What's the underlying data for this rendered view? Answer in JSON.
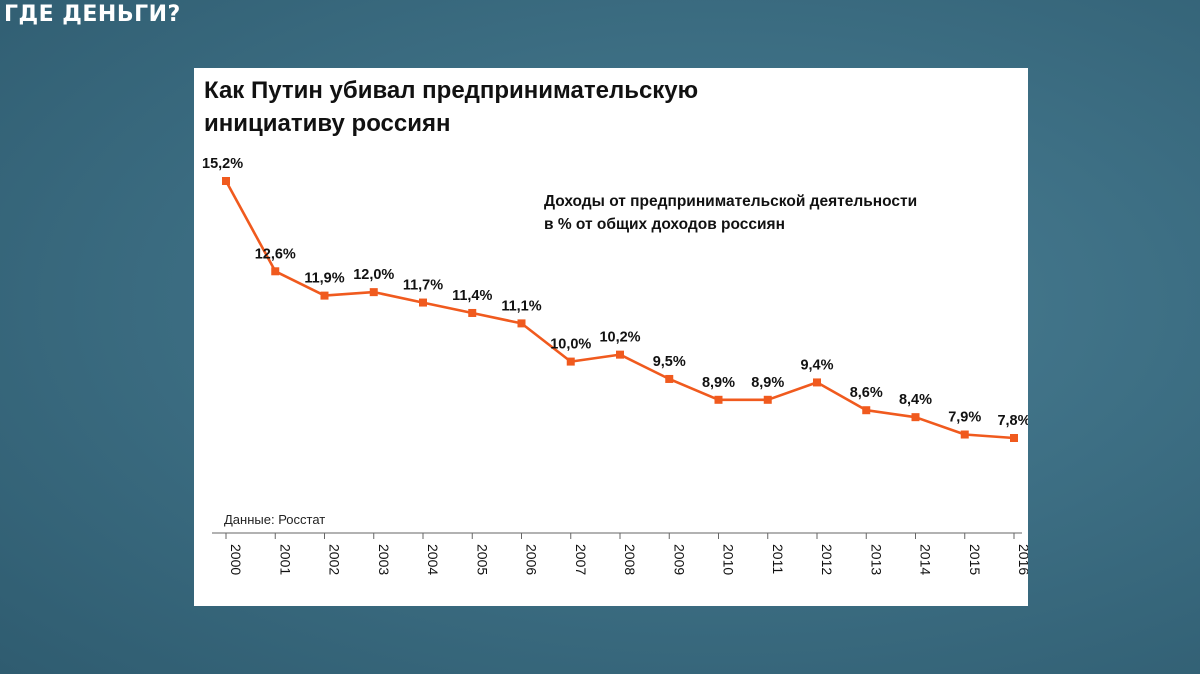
{
  "slide": {
    "title": "ГДЕ ДЕНЬГИ?"
  },
  "chart_data": {
    "type": "line",
    "title": "Как Путин убивал предпринимательскую инициативу россиян",
    "title_lines": [
      "Как Путин убивал предпринимательскую",
      "инициативу россиян"
    ],
    "subtitle_lines": [
      "Доходы от предпринимательской деятельности",
      "в % от общих доходов россиян"
    ],
    "source": "Данные: Росстат",
    "x": [
      "2000",
      "2001",
      "2002",
      "2003",
      "2004",
      "2005",
      "2006",
      "2007",
      "2008",
      "2009",
      "2010",
      "2011",
      "2012",
      "2013",
      "2014",
      "2015",
      "2016"
    ],
    "values": [
      15.2,
      12.6,
      11.9,
      12.0,
      11.7,
      11.4,
      11.1,
      10.0,
      10.2,
      9.5,
      8.9,
      8.9,
      9.4,
      8.6,
      8.4,
      7.9,
      7.8
    ],
    "labels": [
      "15,2%",
      "12,6%",
      "11,9%",
      "12,0%",
      "11,7%",
      "11,4%",
      "11,1%",
      "10,0%",
      "10,2%",
      "9,5%",
      "8,9%",
      "8,9%",
      "9,4%",
      "8,6%",
      "8,4%",
      "7,9%",
      "7,8%"
    ],
    "series_color": "#f05a1e",
    "ylim": [
      7.8,
      15.2
    ],
    "grid": false,
    "legend": "none"
  }
}
